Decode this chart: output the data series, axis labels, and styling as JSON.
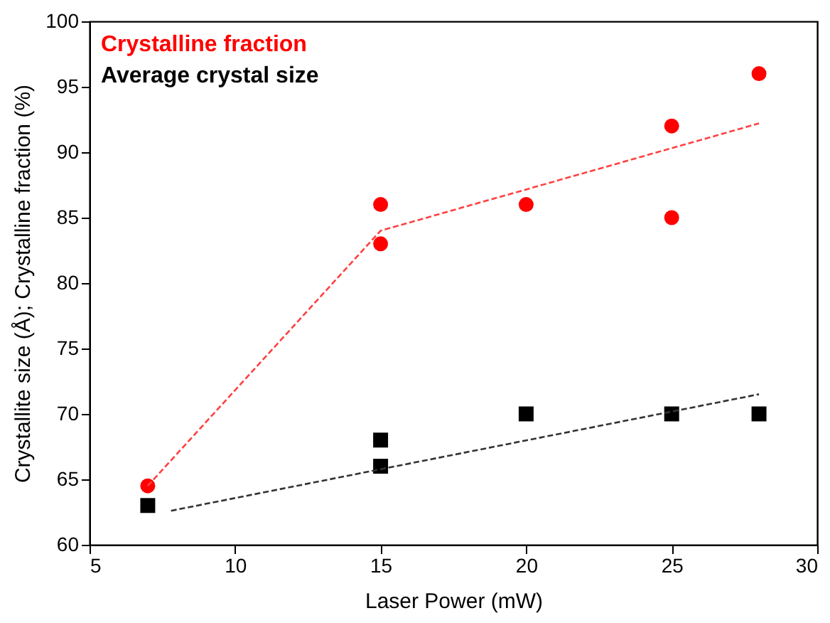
{
  "chart_data": {
    "type": "scatter",
    "xlabel": "Laser Power (mW)",
    "ylabel": "Crystallite size (Å); Crystalline fraction (%)",
    "series": [
      {
        "name": "Crystalline fraction",
        "color": "#ff0000",
        "marker": "circle",
        "x": [
          7,
          15,
          15,
          20,
          25,
          25,
          28
        ],
        "values": [
          64.5,
          86,
          83,
          86,
          92,
          85,
          96
        ]
      },
      {
        "name": "Average crystal size",
        "color": "#000000",
        "marker": "square",
        "x": [
          7,
          15,
          15,
          20,
          25,
          28
        ],
        "values": [
          63,
          68,
          66,
          70,
          70,
          70
        ]
      },
      {
        "type": "line",
        "color": "#ff4040",
        "line_style": "dashed",
        "marker": "none",
        "x": [
          7,
          15,
          28
        ],
        "values": [
          64.5,
          84,
          92.2
        ]
      },
      {
        "type": "line",
        "color": "#333333",
        "line_style": "dashed",
        "marker": "none",
        "x": [
          7.8,
          28
        ],
        "values": [
          62.6,
          71.5
        ]
      }
    ],
    "xlim": [
      5,
      30
    ],
    "xticks": [
      5,
      10,
      15,
      20,
      25,
      30
    ],
    "ylim": [
      60,
      100
    ],
    "yticks": [
      60,
      65,
      70,
      75,
      80,
      85,
      90,
      95,
      100
    ],
    "grid": false,
    "legend": "top left"
  }
}
